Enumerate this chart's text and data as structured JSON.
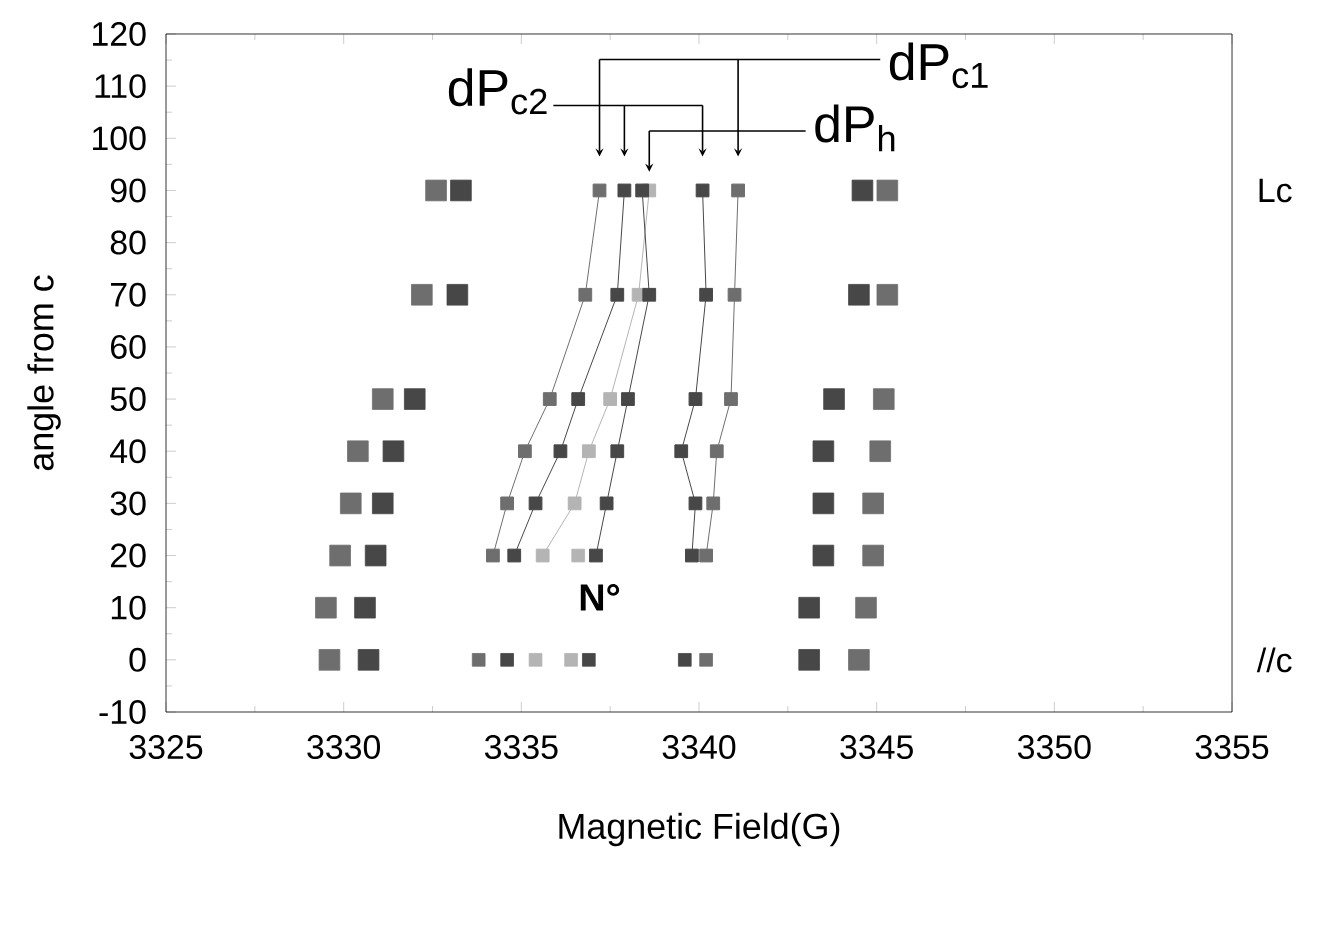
{
  "chart_data": {
    "type": "scatter",
    "xlabel": "Magnetic Field(G)",
    "ylabel": "angle from c",
    "xlim": [
      3325,
      3355
    ],
    "xticks": [
      3325,
      3330,
      3335,
      3340,
      3345,
      3350,
      3355
    ],
    "ylim": [
      -10,
      120
    ],
    "yticks": [
      -10,
      0,
      10,
      20,
      30,
      40,
      50,
      60,
      70,
      80,
      90,
      100,
      110,
      120
    ],
    "marker": "square",
    "grid": false,
    "annotations": [
      "dP$_{c1}$",
      "dP$_{c2}$",
      "dP$_{h}$",
      "N°",
      "Lc",
      "//c"
    ],
    "series": [
      {
        "color": "#6e6e6e",
        "x": [
          3329.6,
          3329.5,
          3329.9,
          3330.2,
          3330.4,
          3331.1,
          3332.2,
          3332.6,
          3344.5,
          3344.7,
          3344.9,
          3344.9,
          3345.1,
          3345.2,
          3345.3,
          3345.3
        ],
        "values": [
          0,
          10,
          20,
          30,
          40,
          50,
          70,
          90,
          0,
          10,
          20,
          30,
          40,
          50,
          70,
          90
        ]
      },
      {
        "color": "#474747",
        "x": [
          3330.7,
          3330.6,
          3330.9,
          3331.1,
          3331.4,
          3332.0,
          3333.2,
          3333.3,
          3343.1,
          3343.1,
          3343.5,
          3343.5,
          3343.5,
          3343.8,
          3344.5,
          3344.6
        ],
        "values": [
          0,
          10,
          20,
          30,
          40,
          50,
          70,
          90,
          0,
          10,
          20,
          30,
          40,
          50,
          70,
          90
        ]
      },
      {
        "colors": [
          "#6e6e6e",
          "#474747",
          "#b4b4b4",
          "#b4b4b4",
          "#474747",
          "#474747",
          "#6e6e6e",
          "#b4b4b4"
        ],
        "x": [
          3333.8,
          3334.6,
          3335.4,
          3336.4,
          3336.9,
          3339.6,
          3340.2,
          3336.6
        ],
        "values": [
          0,
          0,
          0,
          0,
          0,
          0,
          0,
          20
        ]
      },
      {
        "type": "line",
        "color": "#6e6e6e",
        "x": [
          3334.2,
          3334.6,
          3335.1,
          3335.8,
          3336.8,
          3337.2
        ],
        "values": [
          20,
          30,
          40,
          50,
          70,
          90
        ]
      },
      {
        "type": "line",
        "color": "#474747",
        "x": [
          3334.8,
          3335.4,
          3336.1,
          3336.6,
          3337.7,
          3337.9
        ],
        "values": [
          20,
          30,
          40,
          50,
          70,
          90
        ]
      },
      {
        "type": "line",
        "color": "#b4b4b4",
        "x": [
          3335.6,
          3336.5,
          3336.9,
          3337.5,
          3338.3,
          3338.6
        ],
        "values": [
          20,
          30,
          40,
          50,
          70,
          90
        ]
      },
      {
        "type": "line",
        "color": "#474747",
        "x": [
          3337.1,
          3337.4,
          3337.7,
          3338.0,
          3338.6,
          3338.4
        ],
        "values": [
          20,
          30,
          40,
          50,
          70,
          90
        ]
      },
      {
        "type": "line",
        "color": "#474747",
        "x": [
          3339.8,
          3339.9,
          3339.5,
          3339.9,
          3340.2,
          3340.1
        ],
        "values": [
          20,
          30,
          40,
          50,
          70,
          90
        ]
      },
      {
        "type": "line",
        "color": "#6e6e6e",
        "x": [
          3340.2,
          3340.4,
          3340.5,
          3340.9,
          3341.0,
          3341.1
        ],
        "values": [
          20,
          30,
          40,
          50,
          70,
          90
        ]
      }
    ]
  }
}
